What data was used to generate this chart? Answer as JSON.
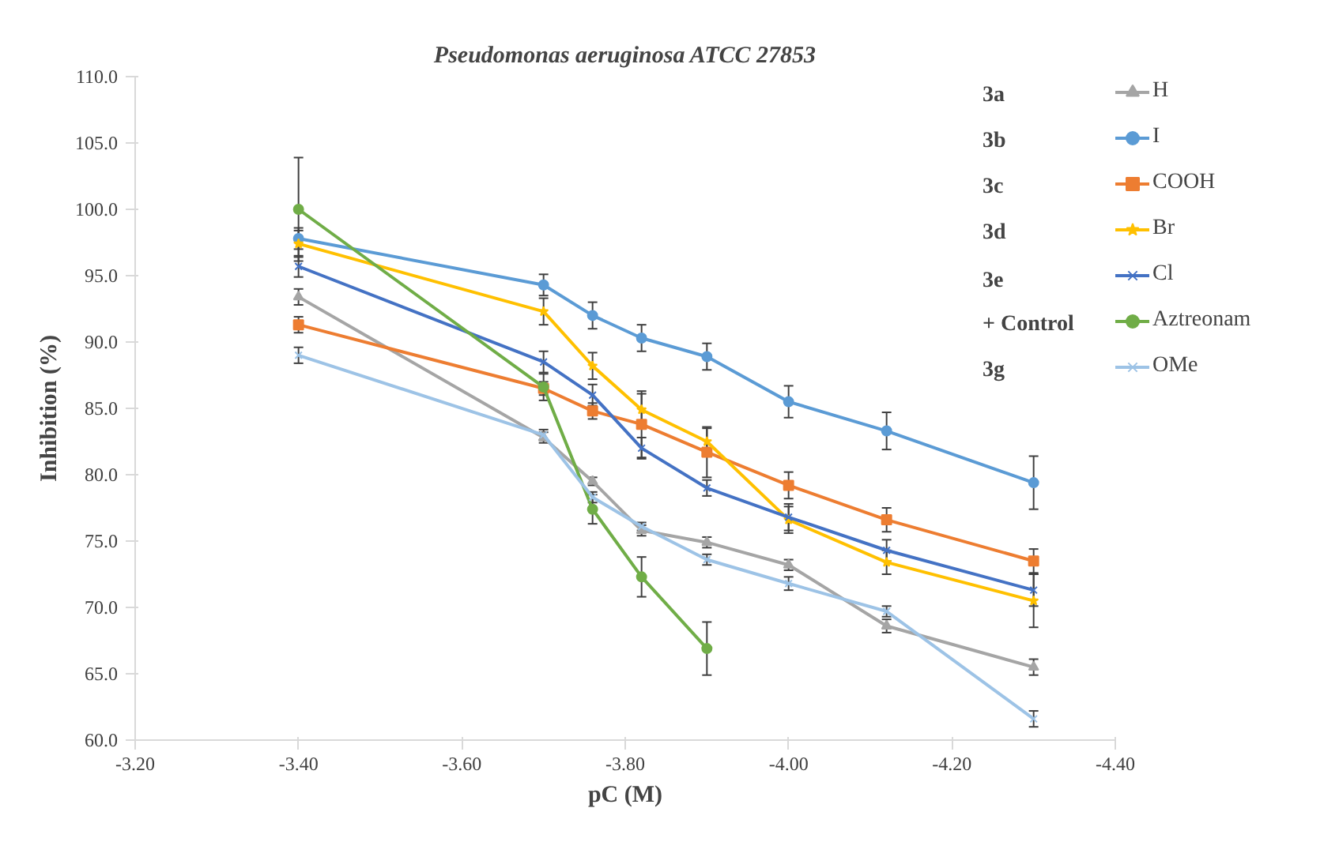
{
  "chart_data": {
    "type": "line",
    "title": "Pseudomonas aeruginosa ATCC 27853",
    "xlabel": "pC (M)",
    "ylabel": "Inhibition (%)",
    "x": [
      -3.4,
      -3.7,
      -3.76,
      -3.82,
      -3.9,
      -4.0,
      -4.12,
      -4.3
    ],
    "xlim": [
      -3.2,
      -4.4
    ],
    "xticks": [
      {
        "value": -3.2,
        "label": "-3.20"
      },
      {
        "value": -3.4,
        "label": "-3.40"
      },
      {
        "value": -3.6,
        "label": "-3.60"
      },
      {
        "value": -3.8,
        "label": "-3.80"
      },
      {
        "value": -4.0,
        "label": "-4.00"
      },
      {
        "value": -4.2,
        "label": "-4.20"
      },
      {
        "value": -4.4,
        "label": "-4.40"
      }
    ],
    "ylim": [
      60,
      110
    ],
    "yticks": [
      {
        "value": 60,
        "label": "60.0"
      },
      {
        "value": 65,
        "label": "65.0"
      },
      {
        "value": 70,
        "label": "70.0"
      },
      {
        "value": 75,
        "label": "75.0"
      },
      {
        "value": 80,
        "label": "80.0"
      },
      {
        "value": 85,
        "label": "85.0"
      },
      {
        "value": 90,
        "label": "90.0"
      },
      {
        "value": 95,
        "label": "95.0"
      },
      {
        "value": 100,
        "label": "100.0"
      },
      {
        "value": 105,
        "label": "105.0"
      },
      {
        "value": 110,
        "label": "110.0"
      }
    ],
    "grid": false,
    "legend": "top right",
    "annotations": [
      "3a",
      "3b",
      "3c",
      "3d",
      "3e",
      "+ Control",
      "3g"
    ],
    "series": [
      {
        "name": "H",
        "color": "#a5a5a5",
        "marker": "triangle",
        "values": [
          93.4,
          82.8,
          79.5,
          75.8,
          74.9,
          73.2,
          68.6,
          65.5
        ],
        "errors": [
          0.6,
          0.4,
          0.3,
          0.4,
          0.4,
          0.4,
          0.5,
          0.6
        ]
      },
      {
        "name": "I",
        "color": "#5b9bd5",
        "marker": "circle",
        "values": [
          97.8,
          94.3,
          92.0,
          90.3,
          88.9,
          85.5,
          83.3,
          79.4
        ],
        "errors": [
          0.8,
          0.8,
          1.0,
          1.0,
          1.0,
          1.2,
          1.4,
          2.0
        ]
      },
      {
        "name": "COOH",
        "color": "#ed7d31",
        "marker": "square",
        "values": [
          91.3,
          86.5,
          84.8,
          83.8,
          81.7,
          79.2,
          76.6,
          73.5
        ],
        "errors": [
          0.6,
          0.5,
          0.6,
          2.5,
          1.9,
          1.0,
          0.9,
          0.9
        ]
      },
      {
        "name": "Br",
        "color": "#ffc000",
        "marker": "star",
        "values": [
          97.4,
          92.3,
          88.2,
          84.9,
          82.5,
          76.6,
          73.4,
          70.5
        ],
        "errors": [
          1.0,
          1.0,
          1.0,
          1.2,
          1.0,
          1.0,
          0.9,
          2.0
        ]
      },
      {
        "name": "Cl",
        "color": "#4472c4",
        "marker": "cross",
        "values": [
          95.7,
          88.5,
          86.0,
          82.0,
          79.0,
          76.8,
          74.3,
          71.3
        ],
        "errors": [
          0.8,
          0.8,
          0.8,
          0.8,
          0.6,
          1.0,
          0.8,
          1.2
        ]
      },
      {
        "name": "Aztreonam",
        "color": "#70ad47",
        "marker": "circle",
        "values": [
          100.0,
          86.6,
          77.4,
          72.3,
          66.9,
          null,
          null,
          null
        ],
        "errors": [
          3.9,
          1.0,
          1.1,
          1.5,
          2.0,
          null,
          null,
          null
        ]
      },
      {
        "name": "OMe",
        "color": "#9dc3e6",
        "marker": "cross",
        "values": [
          89.0,
          83.0,
          78.3,
          76.1,
          73.6,
          71.8,
          69.7,
          61.6
        ],
        "errors": [
          0.6,
          0.4,
          0.4,
          0.3,
          0.4,
          0.5,
          0.4,
          0.6
        ]
      }
    ]
  }
}
